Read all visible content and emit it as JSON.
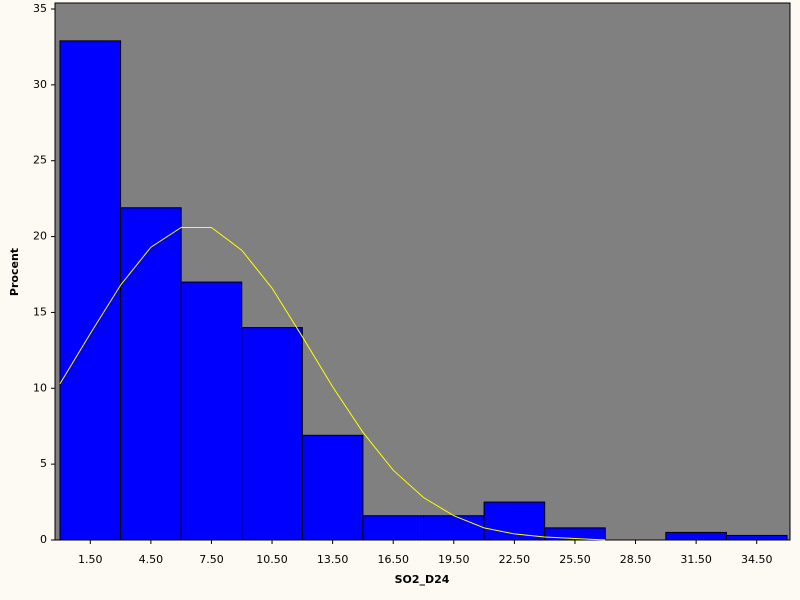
{
  "chart_data": {
    "type": "histogram",
    "xlabel": "SO2_D24",
    "ylabel": "Procent",
    "bins": [
      0,
      3,
      6,
      9,
      12,
      15,
      18,
      21,
      24,
      27,
      30,
      33,
      36
    ],
    "values": [
      32.9,
      21.9,
      17,
      14,
      6.9,
      1.6,
      1.6,
      2.5,
      0.8,
      0,
      0.5,
      0.3
    ],
    "color": "#0000ff",
    "background": "#808080",
    "xlim": [
      0,
      36
    ],
    "ylim": [
      0,
      35
    ],
    "xticks": [
      {
        "value": 1.5,
        "label": "1.50"
      },
      {
        "value": 4.5,
        "label": "4.50"
      },
      {
        "value": 7.5,
        "label": "7.50"
      },
      {
        "value": 10.5,
        "label": "10.50"
      },
      {
        "value": 13.5,
        "label": "13.50"
      },
      {
        "value": 16.5,
        "label": "16.50"
      },
      {
        "value": 19.5,
        "label": "19.50"
      },
      {
        "value": 22.5,
        "label": "22.50"
      },
      {
        "value": 25.5,
        "label": "25.50"
      },
      {
        "value": 28.5,
        "label": "28.50"
      },
      {
        "value": 31.5,
        "label": "31.50"
      },
      {
        "value": 34.5,
        "label": "34.50"
      }
    ],
    "yticks": [
      0,
      5,
      10,
      15,
      20,
      25,
      30,
      35
    ],
    "curve": {
      "color": "#ffff00",
      "x": [
        0,
        1.5,
        3,
        4.5,
        6,
        7.5,
        9,
        10.5,
        12,
        13.5,
        15,
        16.5,
        18,
        19.5,
        21,
        22.5,
        24,
        25.5,
        27
      ],
      "values": [
        10.3,
        13.6,
        16.8,
        19.3,
        20.6,
        20.6,
        19.1,
        16.6,
        13.4,
        10.1,
        7.1,
        4.6,
        2.8,
        1.6,
        0.8,
        0.4,
        0.2,
        0.1,
        0.0
      ]
    }
  }
}
